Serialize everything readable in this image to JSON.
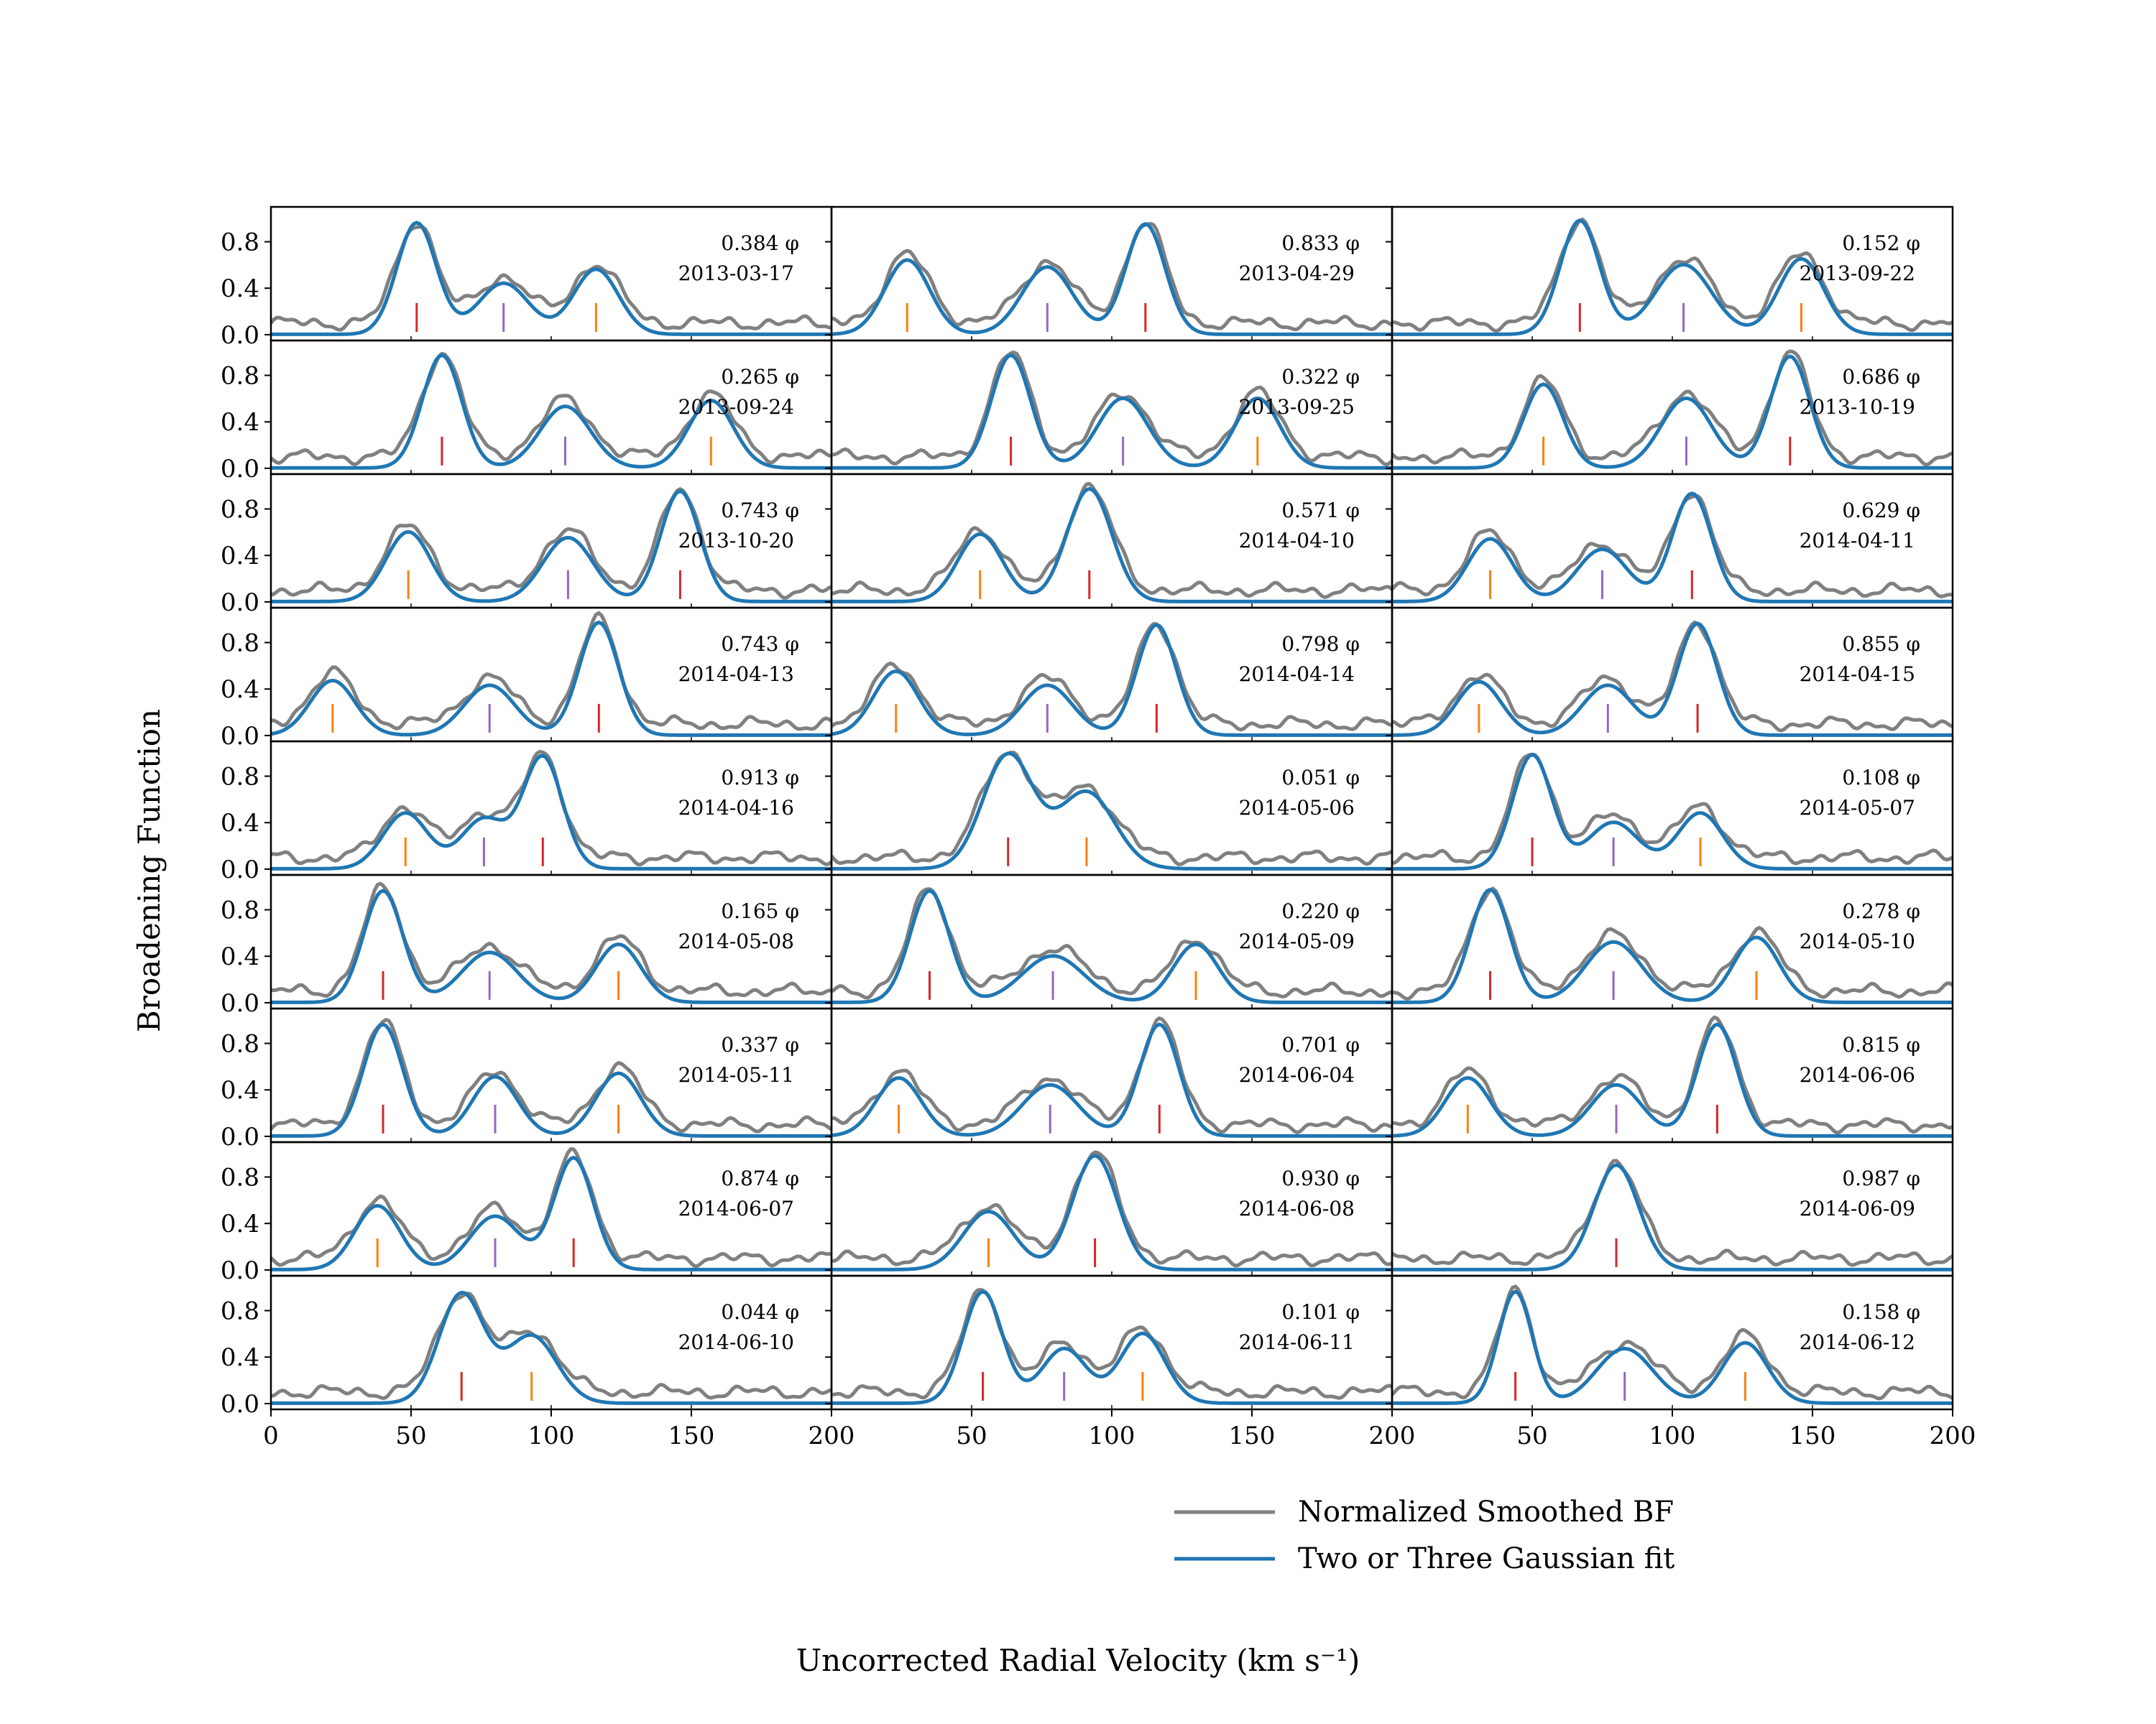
{
  "chart_data": {
    "type": "line",
    "xlabel": "Uncorrected Radial Velocity (km s⁻¹)",
    "ylabel": "Broadening Function",
    "xlim": [
      0,
      200
    ],
    "ylim": [
      -0.05,
      1.1
    ],
    "x_ticks": [
      "0",
      "50",
      "100",
      "150",
      "200"
    ],
    "x_ticks_inner": [
      "50",
      "100",
      "150",
      "200"
    ],
    "y_ticks": [
      "0.0",
      "0.4",
      "0.8"
    ],
    "grid": false,
    "legend_placement": "bottom-right",
    "legend": [
      {
        "name": "Normalized Smoothed BF",
        "color": "#808080"
      },
      {
        "name": "Two or Three Gaussian fit",
        "color": "#1f77b4"
      }
    ],
    "marker_colors": {
      "red": "#d62728",
      "purple": "#9467bd",
      "orange": "#ff7f0e"
    },
    "panels": [
      {
        "phase": "0.384 φ",
        "date": "2013-03-17",
        "peaks": [
          [
            52,
            0.96,
            7,
            "red"
          ],
          [
            83,
            0.44,
            9,
            "purple"
          ],
          [
            116,
            0.56,
            8,
            "orange"
          ]
        ]
      },
      {
        "phase": "0.833 φ",
        "date": "2013-04-29",
        "peaks": [
          [
            27,
            0.64,
            8,
            "orange"
          ],
          [
            77,
            0.58,
            9,
            "purple"
          ],
          [
            112,
            0.95,
            7,
            "red"
          ]
        ]
      },
      {
        "phase": "0.152 φ",
        "date": "2013-09-22",
        "peaks": [
          [
            67,
            0.98,
            7,
            "red"
          ],
          [
            104,
            0.6,
            10,
            "purple"
          ],
          [
            146,
            0.65,
            8,
            "orange"
          ]
        ]
      },
      {
        "phase": "0.265 φ",
        "date": "2013-09-24",
        "peaks": [
          [
            61,
            0.97,
            7,
            "red"
          ],
          [
            105,
            0.53,
            9,
            "purple"
          ],
          [
            157,
            0.58,
            8,
            "orange"
          ]
        ]
      },
      {
        "phase": "0.322 φ",
        "date": "2013-09-25",
        "peaks": [
          [
            64,
            0.97,
            7,
            "red"
          ],
          [
            104,
            0.6,
            9,
            "purple"
          ],
          [
            152,
            0.6,
            8,
            "orange"
          ]
        ]
      },
      {
        "phase": "0.686 φ",
        "date": "2013-10-19",
        "peaks": [
          [
            54,
            0.72,
            7,
            "orange"
          ],
          [
            105,
            0.6,
            9,
            "purple"
          ],
          [
            142,
            0.96,
            7,
            "red"
          ]
        ]
      },
      {
        "phase": "0.743 φ",
        "date": "2013-10-20",
        "peaks": [
          [
            49,
            0.6,
            8,
            "orange"
          ],
          [
            106,
            0.55,
            9,
            "purple"
          ],
          [
            146,
            0.95,
            7,
            "red"
          ]
        ]
      },
      {
        "phase": "0.571 φ",
        "date": "2014-04-10",
        "peaks": [
          [
            53,
            0.58,
            8,
            "orange"
          ],
          [
            92,
            0.97,
            8,
            "red"
          ]
        ]
      },
      {
        "phase": "0.629 φ",
        "date": "2014-04-11",
        "peaks": [
          [
            35,
            0.54,
            8,
            "orange"
          ],
          [
            75,
            0.45,
            9,
            "purple"
          ],
          [
            107,
            0.93,
            7,
            "red"
          ]
        ]
      },
      {
        "phase": "0.743 φ",
        "date": "2014-04-13",
        "peaks": [
          [
            22,
            0.47,
            8,
            "orange"
          ],
          [
            78,
            0.43,
            9,
            "purple"
          ],
          [
            117,
            0.97,
            7,
            "red"
          ]
        ]
      },
      {
        "phase": "0.798 φ",
        "date": "2014-04-14",
        "peaks": [
          [
            23,
            0.55,
            8,
            "orange"
          ],
          [
            77,
            0.43,
            9,
            "purple"
          ],
          [
            116,
            0.95,
            7,
            "red"
          ]
        ]
      },
      {
        "phase": "0.855 φ",
        "date": "2014-04-15",
        "peaks": [
          [
            31,
            0.46,
            8,
            "orange"
          ],
          [
            77,
            0.43,
            9,
            "purple"
          ],
          [
            109,
            0.96,
            7,
            "red"
          ]
        ]
      },
      {
        "phase": "0.913 φ",
        "date": "2014-04-16",
        "peaks": [
          [
            48,
            0.48,
            8,
            "orange"
          ],
          [
            76,
            0.43,
            8,
            "purple"
          ],
          [
            97,
            0.96,
            7,
            "red"
          ]
        ]
      },
      {
        "phase": "0.051 φ",
        "date": "2014-05-06",
        "peaks": [
          [
            63,
            0.98,
            9,
            "red"
          ],
          [
            91,
            0.66,
            10,
            "orange"
          ]
        ]
      },
      {
        "phase": "0.108 φ",
        "date": "2014-05-07",
        "peaks": [
          [
            50,
            0.98,
            7,
            "red"
          ],
          [
            79,
            0.4,
            9,
            "purple"
          ],
          [
            110,
            0.48,
            8,
            "orange"
          ]
        ]
      },
      {
        "phase": "0.165 φ",
        "date": "2014-05-08",
        "peaks": [
          [
            40,
            0.96,
            7,
            "red"
          ],
          [
            78,
            0.43,
            10,
            "purple"
          ],
          [
            124,
            0.5,
            8,
            "orange"
          ]
        ]
      },
      {
        "phase": "0.220 φ",
        "date": "2014-05-09",
        "peaks": [
          [
            35,
            0.96,
            7,
            "red"
          ],
          [
            79,
            0.4,
            11,
            "purple"
          ],
          [
            130,
            0.5,
            8,
            "orange"
          ]
        ]
      },
      {
        "phase": "0.278 φ",
        "date": "2014-05-10",
        "peaks": [
          [
            35,
            0.97,
            7,
            "red"
          ],
          [
            79,
            0.52,
            10,
            "purple"
          ],
          [
            130,
            0.56,
            8,
            "orange"
          ]
        ]
      },
      {
        "phase": "0.337 φ",
        "date": "2014-05-11",
        "peaks": [
          [
            40,
            0.96,
            7,
            "red"
          ],
          [
            80,
            0.51,
            8,
            "purple"
          ],
          [
            124,
            0.54,
            8,
            "orange"
          ]
        ]
      },
      {
        "phase": "0.701 φ",
        "date": "2014-06-04",
        "peaks": [
          [
            24,
            0.5,
            8,
            "orange"
          ],
          [
            78,
            0.44,
            10,
            "purple"
          ],
          [
            117,
            0.96,
            7,
            "red"
          ]
        ]
      },
      {
        "phase": "0.815 φ",
        "date": "2014-06-06",
        "peaks": [
          [
            27,
            0.5,
            8,
            "orange"
          ],
          [
            80,
            0.44,
            9,
            "purple"
          ],
          [
            116,
            0.96,
            7,
            "red"
          ]
        ]
      },
      {
        "phase": "0.874 φ",
        "date": "2014-06-07",
        "peaks": [
          [
            38,
            0.55,
            8,
            "orange"
          ],
          [
            80,
            0.46,
            9,
            "purple"
          ],
          [
            108,
            0.96,
            7,
            "red"
          ]
        ]
      },
      {
        "phase": "0.930 φ",
        "date": "2014-06-08",
        "peaks": [
          [
            56,
            0.5,
            9,
            "orange"
          ],
          [
            94,
            0.98,
            8,
            "red"
          ]
        ]
      },
      {
        "phase": "0.987 φ",
        "date": "2014-06-09",
        "peaks": [
          [
            80,
            0.9,
            8,
            "red"
          ]
        ]
      },
      {
        "phase": "0.044 φ",
        "date": "2014-06-10",
        "peaks": [
          [
            68,
            0.94,
            8,
            "red"
          ],
          [
            93,
            0.58,
            9,
            "orange"
          ]
        ]
      },
      {
        "phase": "0.101 φ",
        "date": "2014-06-11",
        "peaks": [
          [
            54,
            0.96,
            7,
            "red"
          ],
          [
            83,
            0.47,
            8,
            "purple"
          ],
          [
            111,
            0.6,
            8,
            "orange"
          ]
        ]
      },
      {
        "phase": "0.158 φ",
        "date": "2014-06-12",
        "peaks": [
          [
            44,
            0.96,
            6,
            "red"
          ],
          [
            83,
            0.47,
            10,
            "purple"
          ],
          [
            126,
            0.52,
            8,
            "orange"
          ]
        ]
      }
    ]
  }
}
